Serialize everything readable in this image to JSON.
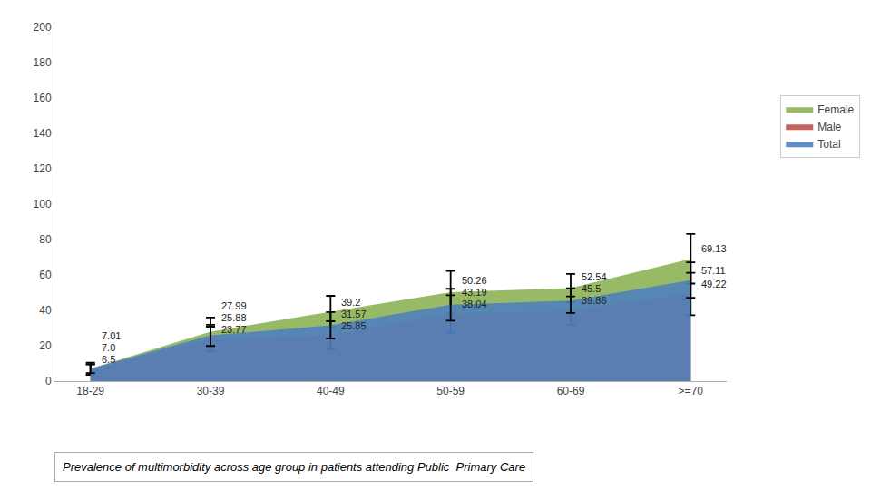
{
  "chart_data": {
    "type": "area",
    "categories": [
      "18-29",
      "30-39",
      "40-49",
      "50-59",
      "60-69",
      ">=70"
    ],
    "series": [
      {
        "name": "Female",
        "color": "#8DB255",
        "values": [
          7.0,
          27.99,
          39.2,
          50.26,
          52.54,
          69.13
        ],
        "value_labels": [
          "7.0",
          "27.99",
          "39.2",
          "50.26",
          "52.54",
          "69.13"
        ],
        "errors": [
          3.5,
          8.0,
          9.0,
          12.0,
          8.0,
          14.0
        ]
      },
      {
        "name": "Male",
        "color": "#C0504D",
        "values": [
          6.5,
          23.77,
          25.85,
          38.04,
          39.86,
          49.22
        ],
        "value_labels": [
          "6.5",
          "23.77",
          "25.85",
          "38.04",
          "39.86",
          "49.22"
        ],
        "errors": [
          3.0,
          7.0,
          8.0,
          10.5,
          8.0,
          12.0
        ]
      },
      {
        "name": "Total",
        "color": "#4F81BD",
        "values": [
          7.01,
          25.88,
          31.57,
          43.19,
          45.5,
          57.11
        ],
        "value_labels": [
          "7.01",
          "25.88",
          "31.57",
          "43.19",
          "45.5",
          "57.11"
        ],
        "errors": [
          2.5,
          6.0,
          7.5,
          9.0,
          7.0,
          10.0
        ]
      }
    ],
    "ylim": [
      0,
      200
    ],
    "yticks": [
      0,
      20,
      40,
      60,
      80,
      100,
      120,
      140,
      160,
      180,
      200
    ],
    "grid": false,
    "legend": "right",
    "data_labels": true,
    "annotations": [
      "Prevalence of multimorbidity across age group in patients attending Public  Primary Care"
    ]
  }
}
